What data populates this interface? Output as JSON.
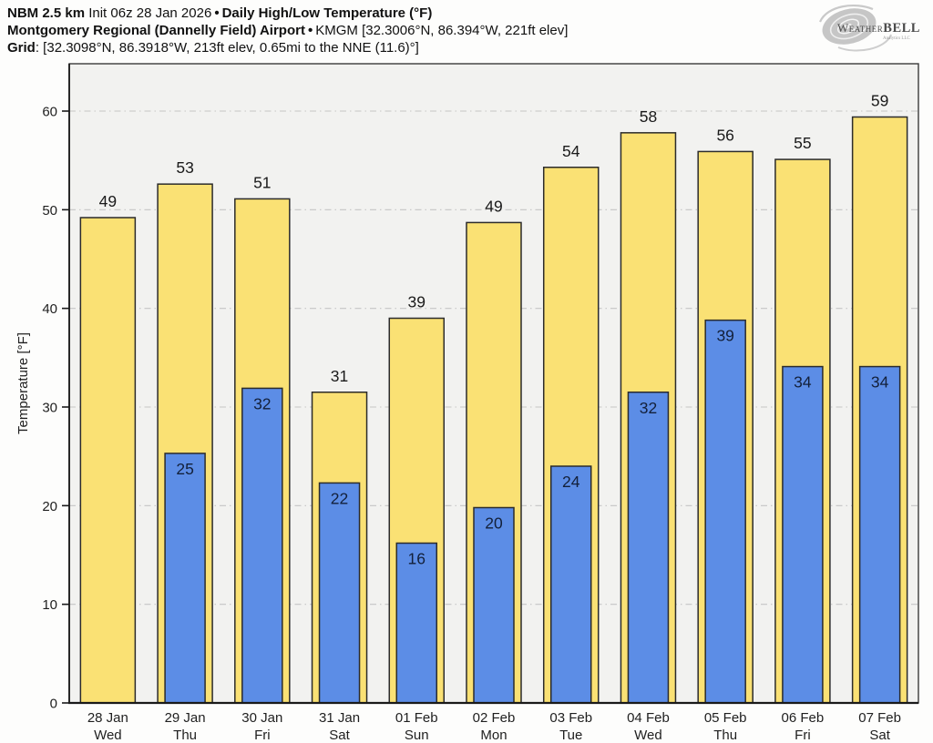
{
  "header": {
    "line1": {
      "bold1": "NBM 2.5 km",
      "text1": "Init 06z 28 Jan 2026",
      "sep": "•",
      "bold2": "Daily High/Low Temperature (°F)"
    },
    "line2": {
      "bold1": "Montgomery Regional (Dannelly Field) Airport",
      "sep": "•",
      "text1": "KMGM [32.3006°N, 86.394°W, 221ft elev]"
    },
    "line3": {
      "bold1": "Grid",
      "text1": ": [32.3098°N, 86.3918°W, 213ft elev, 0.65mi to the NNE (11.6)°]"
    }
  },
  "logo": {
    "brand1": "Weather",
    "brand2": "BELL",
    "subtext": "Analytics LLC"
  },
  "chart_data": {
    "type": "bar",
    "title": "Daily High/Low Temperature (°F)",
    "ylabel": "Temperature [°F]",
    "xlabel": "",
    "ylim": [
      0,
      64.8
    ],
    "yticks": [
      0,
      10,
      20,
      30,
      40,
      50,
      60
    ],
    "grid": "horizontal dash-dot",
    "legend": "none",
    "categories_date": [
      "28 Jan",
      "29 Jan",
      "30 Jan",
      "31 Jan",
      "01 Feb",
      "02 Feb",
      "03 Feb",
      "04 Feb",
      "05 Feb",
      "06 Feb",
      "07 Feb"
    ],
    "categories_day": [
      "Wed",
      "Thu",
      "Fri",
      "Sat",
      "Sun",
      "Mon",
      "Tue",
      "Wed",
      "Thu",
      "Fri",
      "Sat"
    ],
    "series": [
      {
        "name": "High",
        "color": "#FAE174",
        "values": [
          49,
          53,
          51,
          31,
          39,
          49,
          54,
          58,
          56,
          55,
          59
        ],
        "bar_tops": [
          49.2,
          52.6,
          51.1,
          31.5,
          39.0,
          48.7,
          54.3,
          57.8,
          55.9,
          55.1,
          59.4
        ]
      },
      {
        "name": "Low",
        "color": "#5C8DE6",
        "values": [
          null,
          25,
          32,
          22,
          16,
          20,
          24,
          32,
          39,
          34,
          34
        ],
        "bar_tops": [
          null,
          25.3,
          31.9,
          22.3,
          16.2,
          19.8,
          24.0,
          31.5,
          38.8,
          34.1,
          34.1
        ]
      }
    ],
    "colors": {
      "plot_bg": "#F2F2F0",
      "grid": "#C5C5C5",
      "frame": "#3A3A3A",
      "axis": "#1A1A1A",
      "bar_stroke": "#2B2B2B",
      "high_label": "#1A1A1A",
      "low_label": "#13203A",
      "tick_label": "#1F1F1F"
    }
  }
}
